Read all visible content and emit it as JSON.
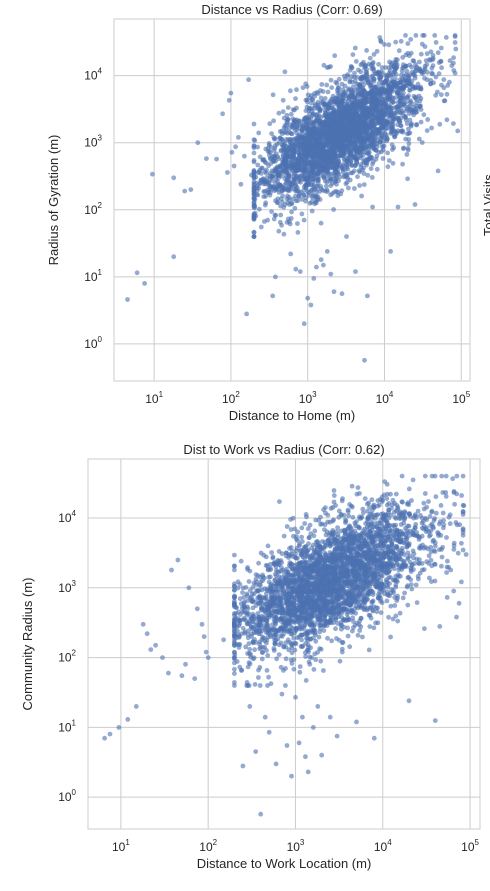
{
  "side_label": "Total Visits",
  "chart_data": [
    {
      "type": "scatter",
      "title": "Distance vs Radius (Corr: 0.69)",
      "xlabel": "Distance to Home (m)",
      "ylabel": "Radius of Gyration (m)",
      "xscale": "log",
      "yscale": "log",
      "xlim": [
        3,
        130000
      ],
      "ylim": [
        0.28,
        70000
      ],
      "xticks": [
        {
          "v": 10,
          "b": "10",
          "e": "1"
        },
        {
          "v": 100,
          "b": "10",
          "e": "2"
        },
        {
          "v": 1000,
          "b": "10",
          "e": "3"
        },
        {
          "v": 10000,
          "b": "10",
          "e": "4"
        },
        {
          "v": 100000,
          "b": "10",
          "e": "5"
        }
      ],
      "yticks": [
        {
          "v": 1,
          "b": "10",
          "e": "0"
        },
        {
          "v": 10,
          "b": "10",
          "e": "1"
        },
        {
          "v": 100,
          "b": "10",
          "e": "2"
        },
        {
          "v": 1000,
          "b": "10",
          "e": "3"
        },
        {
          "v": 10000,
          "b": "10",
          "e": "4"
        }
      ],
      "grid": true,
      "color": "#4c72b0",
      "points": [
        [
          4.5,
          4.6
        ],
        [
          6,
          11.5
        ],
        [
          7.5,
          8
        ],
        [
          9.5,
          340
        ],
        [
          18,
          20
        ],
        [
          18,
          300
        ],
        [
          25,
          190
        ],
        [
          30,
          200
        ],
        [
          37,
          1000
        ],
        [
          48,
          580
        ],
        [
          65,
          570
        ],
        [
          78,
          2700
        ],
        [
          90,
          360
        ],
        [
          95,
          4300
        ],
        [
          100,
          5500
        ],
        [
          103,
          720
        ],
        [
          110,
          450
        ],
        [
          115,
          870
        ],
        [
          125,
          1200
        ],
        [
          135,
          240
        ],
        [
          150,
          630
        ],
        [
          160,
          2.8
        ],
        [
          170,
          8700
        ],
        [
          185,
          330
        ],
        [
          200,
          1900
        ],
        [
          230,
          1400
        ],
        [
          260,
          550
        ],
        [
          300,
          70
        ],
        [
          350,
          5.2
        ],
        [
          380,
          10
        ],
        [
          420,
          48
        ],
        [
          480,
          4300
        ],
        [
          520,
          1450
        ],
        [
          600,
          22
        ],
        [
          700,
          13
        ],
        [
          800,
          12
        ],
        [
          900,
          2
        ],
        [
          950,
          210
        ],
        [
          1000,
          4.8
        ],
        [
          1100,
          3.8
        ],
        [
          1200,
          9.5
        ],
        [
          1300,
          14
        ],
        [
          1500,
          18
        ],
        [
          1600,
          15
        ],
        [
          1800,
          24
        ],
        [
          2000,
          11
        ],
        [
          2200,
          6
        ],
        [
          2800,
          5.6
        ],
        [
          3200,
          40
        ],
        [
          4200,
          12
        ],
        [
          5500,
          0.57
        ],
        [
          6000,
          5.2
        ],
        [
          7000,
          110
        ],
        [
          9000,
          32000
        ],
        [
          12000,
          24
        ],
        [
          15000,
          110
        ],
        [
          20000,
          290
        ],
        [
          25000,
          120
        ],
        [
          30000,
          6300
        ],
        [
          40000,
          8500
        ],
        [
          50000,
          380
        ],
        [
          55000,
          5200
        ],
        [
          60000,
          4200
        ],
        [
          65000,
          2200
        ],
        [
          70000,
          8000
        ],
        [
          80000,
          12000
        ],
        [
          85000,
          25000
        ],
        [
          90000,
          1500
        ]
      ],
      "cloud": {
        "count": 3300,
        "center_log": [
          3.42,
          3.15
        ],
        "sd_log": [
          0.52,
          0.5
        ],
        "corr": 0.69,
        "seed": 11
      }
    },
    {
      "type": "scatter",
      "title": "Dist to Work vs Radius (Corr: 0.62)",
      "xlabel": "Distance to Work Location (m)",
      "ylabel": "Community Radius (m)",
      "xscale": "log",
      "yscale": "log",
      "xlim": [
        4.2,
        130000
      ],
      "ylim": [
        0.35,
        70000
      ],
      "xticks": [
        {
          "v": 10,
          "b": "10",
          "e": "1"
        },
        {
          "v": 100,
          "b": "10",
          "e": "2"
        },
        {
          "v": 1000,
          "b": "10",
          "e": "3"
        },
        {
          "v": 10000,
          "b": "10",
          "e": "4"
        },
        {
          "v": 100000,
          "b": "10",
          "e": "5"
        }
      ],
      "yticks": [
        {
          "v": 1,
          "b": "10",
          "e": "0"
        },
        {
          "v": 10,
          "b": "10",
          "e": "1"
        },
        {
          "v": 100,
          "b": "10",
          "e": "2"
        },
        {
          "v": 1000,
          "b": "10",
          "e": "3"
        },
        {
          "v": 10000,
          "b": "10",
          "e": "4"
        }
      ],
      "grid": true,
      "color": "#4c72b0",
      "points": [
        [
          6.5,
          7
        ],
        [
          7.5,
          8
        ],
        [
          9.5,
          10
        ],
        [
          12,
          13
        ],
        [
          15,
          20
        ],
        [
          18,
          300
        ],
        [
          20,
          220
        ],
        [
          22,
          130
        ],
        [
          25,
          150
        ],
        [
          30,
          100
        ],
        [
          35,
          60
        ],
        [
          38,
          1800
        ],
        [
          45,
          2500
        ],
        [
          50,
          55
        ],
        [
          55,
          80
        ],
        [
          60,
          1000
        ],
        [
          70,
          50
        ],
        [
          75,
          500
        ],
        [
          85,
          300
        ],
        [
          90,
          200
        ],
        [
          95,
          120
        ],
        [
          100,
          100
        ],
        [
          150,
          180
        ],
        [
          200,
          350
        ],
        [
          250,
          2.8
        ],
        [
          300,
          20
        ],
        [
          350,
          4.5
        ],
        [
          400,
          0.57
        ],
        [
          450,
          14
        ],
        [
          500,
          8.5
        ],
        [
          600,
          3
        ],
        [
          700,
          30
        ],
        [
          800,
          5.5
        ],
        [
          900,
          2
        ],
        [
          1000,
          27
        ],
        [
          1100,
          6
        ],
        [
          1200,
          14
        ],
        [
          1300,
          3.8
        ],
        [
          1400,
          2.3
        ],
        [
          1600,
          10
        ],
        [
          1800,
          20
        ],
        [
          2000,
          4
        ],
        [
          2500,
          14
        ],
        [
          3000,
          7.5
        ],
        [
          5000,
          12
        ],
        [
          8000,
          7
        ],
        [
          20000,
          24
        ],
        [
          30000,
          260
        ],
        [
          40000,
          12.5
        ],
        [
          45000,
          280
        ],
        [
          50000,
          8000
        ],
        [
          55000,
          2400
        ],
        [
          60000,
          1800
        ],
        [
          65000,
          900
        ],
        [
          70000,
          380
        ],
        [
          75000,
          600
        ],
        [
          80000,
          21000
        ],
        [
          85000,
          15000
        ],
        [
          90000,
          3000
        ]
      ],
      "cloud": {
        "count": 3300,
        "center_log": [
          3.42,
          3.12
        ],
        "sd_log": [
          0.55,
          0.52
        ],
        "corr": 0.62,
        "seed": 29
      }
    }
  ]
}
